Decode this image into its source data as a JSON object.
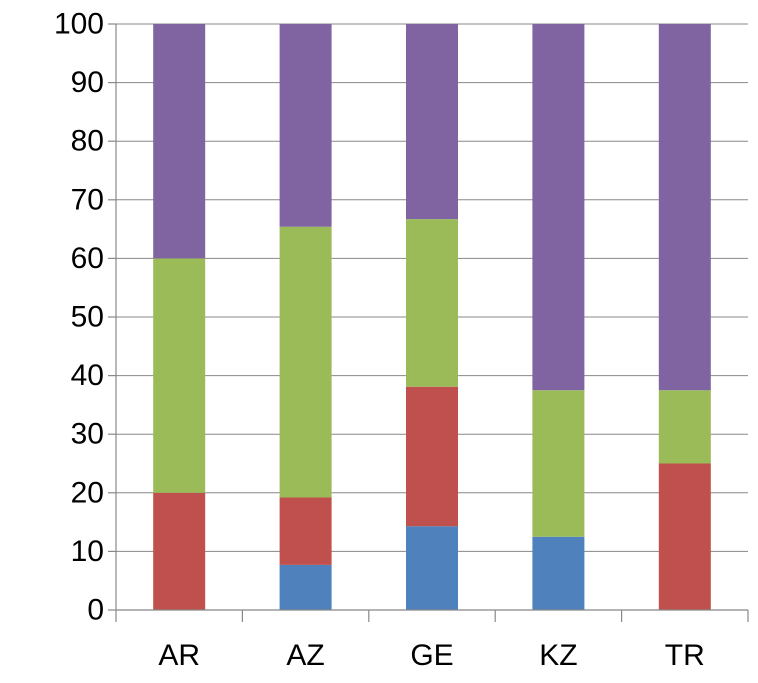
{
  "chart_data": {
    "type": "bar",
    "stacked": true,
    "categories": [
      "AR",
      "AZ",
      "GE",
      "KZ",
      "TR"
    ],
    "ylim": [
      0,
      100
    ],
    "yticks": [
      0,
      10,
      20,
      30,
      40,
      50,
      60,
      70,
      80,
      90,
      100
    ],
    "grid": true,
    "legend": "none",
    "title": "",
    "xlabel": "",
    "ylabel": "",
    "series": [
      {
        "color": "#4F81BD",
        "values": [
          0,
          7.7,
          14.3,
          12.5,
          0
        ]
      },
      {
        "color": "#C0504D",
        "values": [
          20,
          11.5,
          23.8,
          0,
          25
        ]
      },
      {
        "color": "#9BBB59",
        "values": [
          40,
          46.2,
          28.6,
          25,
          12.5
        ]
      },
      {
        "color": "#8064A2",
        "values": [
          40,
          34.6,
          33.3,
          62.5,
          62.5
        ]
      }
    ]
  }
}
